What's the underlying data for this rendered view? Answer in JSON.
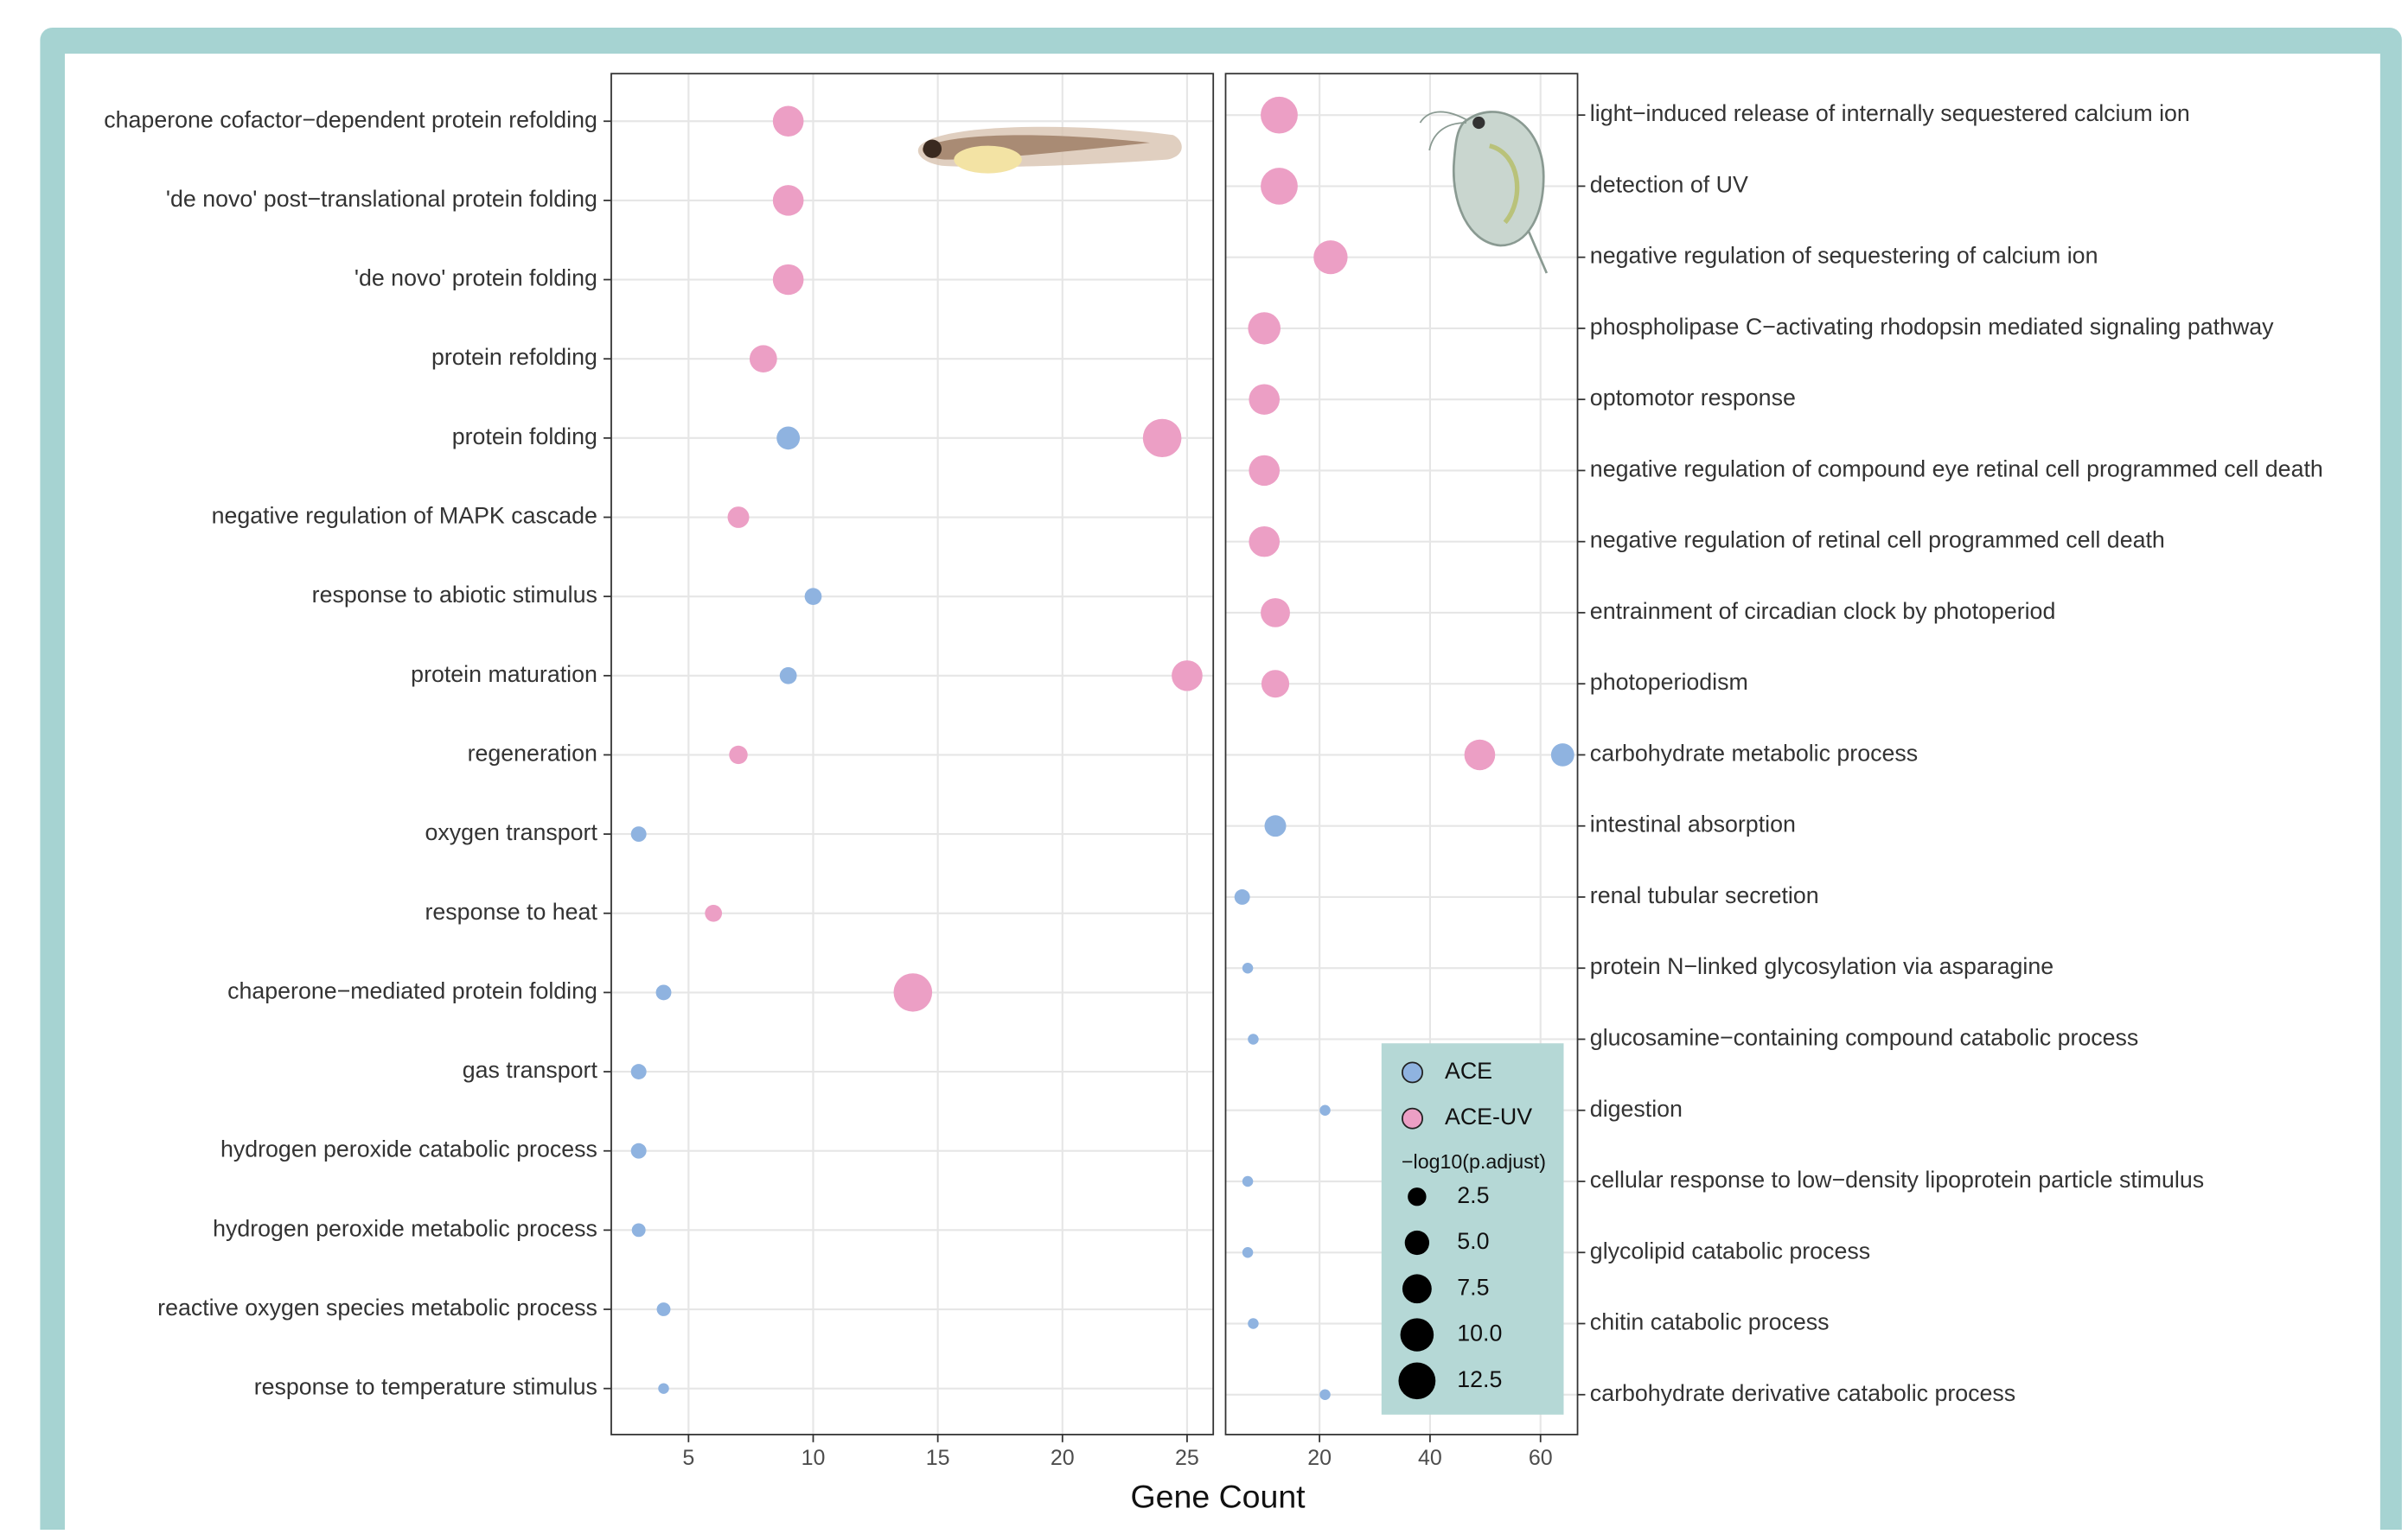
{
  "chart_data": [
    {
      "type": "scatter",
      "categories": [
        "chaperone cofactor−dependent protein refolding",
        "'de novo' post−translational protein folding",
        "'de novo' protein folding",
        "protein refolding",
        "protein folding",
        "negative regulation of MAPK cascade",
        "response to abiotic stimulus",
        "protein maturation",
        "regeneration",
        "oxygen transport",
        "response to heat",
        "chaperone−mediated protein folding",
        "gas transport",
        "hydrogen peroxide catabolic process",
        "hydrogen peroxide metabolic process",
        "reactive oxygen species metabolic process",
        "response to temperature stimulus"
      ],
      "series": [
        {
          "name": "ACE",
          "color": "#8fb3e0",
          "values": [
            null,
            null,
            null,
            null,
            9,
            null,
            10,
            9,
            null,
            3,
            null,
            4,
            3,
            3,
            3,
            4,
            4
          ],
          "sizes": [
            null,
            null,
            null,
            null,
            4.4,
            null,
            2,
            2,
            null,
            1.5,
            null,
            1.5,
            1.5,
            1.5,
            1.0,
            1.0,
            0.3
          ]
        },
        {
          "name": "ACE-UV",
          "color": "#ec9fc5",
          "values": [
            9,
            9,
            9,
            8,
            24,
            7,
            null,
            25,
            7,
            null,
            6,
            14,
            null,
            null,
            null,
            null,
            null
          ],
          "sizes": [
            8.4,
            8.4,
            8.4,
            6.5,
            13.6,
            3.7,
            null,
            8.4,
            2.5,
            null,
            2,
            13.6,
            null,
            null,
            null,
            null,
            null
          ]
        }
      ],
      "xlim": [
        1.9,
        26.05
      ],
      "xticks": [
        5,
        10,
        15,
        20,
        25
      ],
      "grid": true
    },
    {
      "type": "scatter",
      "categories": [
        "light−induced release of internally sequestered calcium ion",
        "detection of UV",
        "negative regulation of sequestering of calcium ion",
        "phospholipase C−activating rhodopsin mediated signaling pathway",
        "optomotor response",
        "negative regulation of compound eye retinal cell programmed cell death",
        "negative regulation of retinal cell programmed cell death",
        "entrainment of circadian clock by photoperiod",
        "photoperiodism",
        "carbohydrate metabolic process",
        "intestinal absorption",
        "renal tubular secretion",
        "protein N−linked glycosylation via asparagine",
        "glucosamine−containing compound catabolic process",
        "digestion",
        "cellular response to low−density lipoprotein particle stimulus",
        "glycolipid catabolic process",
        "chitin catabolic process",
        "carbohydrate derivative catabolic process"
      ],
      "series": [
        {
          "name": "ACE",
          "color": "#8fb3e0",
          "values": [
            null,
            null,
            null,
            null,
            null,
            null,
            null,
            null,
            null,
            64,
            12,
            6,
            7,
            8,
            21,
            7,
            7,
            8,
            21
          ],
          "sizes": [
            null,
            null,
            null,
            null,
            null,
            null,
            null,
            null,
            null,
            4.4,
            3.7,
            1.5,
            0.3,
            0.3,
            0.3,
            0.3,
            0.3,
            0.3,
            0.3
          ]
        },
        {
          "name": "ACE-UV",
          "color": "#ec9fc5",
          "values": [
            12.7,
            12.7,
            22,
            10,
            10,
            10,
            10,
            12,
            12,
            49,
            null,
            null,
            null,
            null,
            null,
            null,
            null,
            null,
            null
          ],
          "sizes": [
            12.5,
            12.5,
            10.4,
            9.4,
            8.4,
            8.4,
            8.4,
            7.5,
            6.7,
            8.4,
            null,
            null,
            null,
            null,
            null,
            null,
            null,
            null,
            null
          ]
        }
      ],
      "xlim": [
        3,
        66.7
      ],
      "xticks": [
        20,
        40,
        60
      ],
      "grid": true
    }
  ],
  "x_label": "Gene Count",
  "legend": {
    "title": "−log10(p.adjust)",
    "sizes": [
      2.5,
      {
        "value": 5,
        "label": "5.0"
      },
      7.5,
      {
        "value": 10,
        "label": "10.0"
      },
      12.5
    ]
  }
}
